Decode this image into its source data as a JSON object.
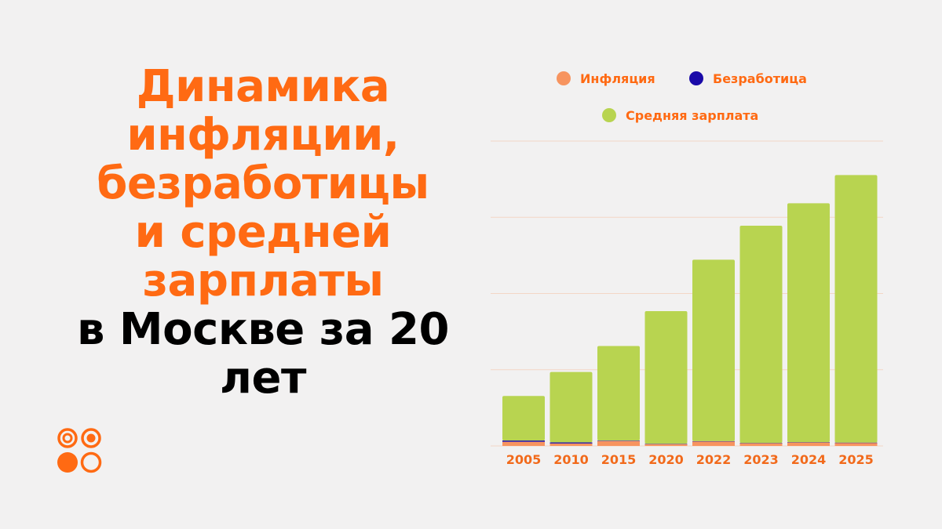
{
  "colors": {
    "background": "#f2f1f1",
    "accent": "#ff6a13",
    "title_dark": "#000000",
    "gridline": "#f3d6c6",
    "inflation": "#f7945f",
    "unemployment": "#1a0aa8",
    "salary": "#b8d450",
    "tick_text": "#f26a1b"
  },
  "title": {
    "accent_lines": [
      "Динамика",
      "инфляции,",
      "безработицы",
      "и средней",
      "зарплаты"
    ],
    "dark_lines": [
      "в Москве за 20",
      "лет"
    ]
  },
  "logo": {
    "icon": "company-logo-circles"
  },
  "chart_data": {
    "type": "bar",
    "stacked": true,
    "categories": [
      "2005",
      "2010",
      "2015",
      "2020",
      "2022",
      "2023",
      "2024",
      "2025"
    ],
    "series": [
      {
        "name": "Инфляция",
        "color": "#f7945f",
        "values": [
          10.9,
          6.5,
          12.9,
          4.9,
          11.9,
          7.4,
          9.5,
          8.5
        ]
      },
      {
        "name": "Безработица",
        "color": "#1a0aa8",
        "values": [
          3.3,
          2.7,
          1.2,
          0.8,
          0.7,
          0.4,
          0.3,
          0.2
        ]
      },
      {
        "name": "Средняя зарплата",
        "color": "#b8d450",
        "values": [
          117,
          185,
          248,
          348,
          476,
          570,
          627,
          702
        ]
      }
    ],
    "ylim": [
      0,
      800
    ],
    "gridlines": [
      0,
      200,
      400,
      600,
      800
    ],
    "grid": true,
    "legend": "top",
    "title": "",
    "xlabel": "",
    "ylabel": ""
  }
}
